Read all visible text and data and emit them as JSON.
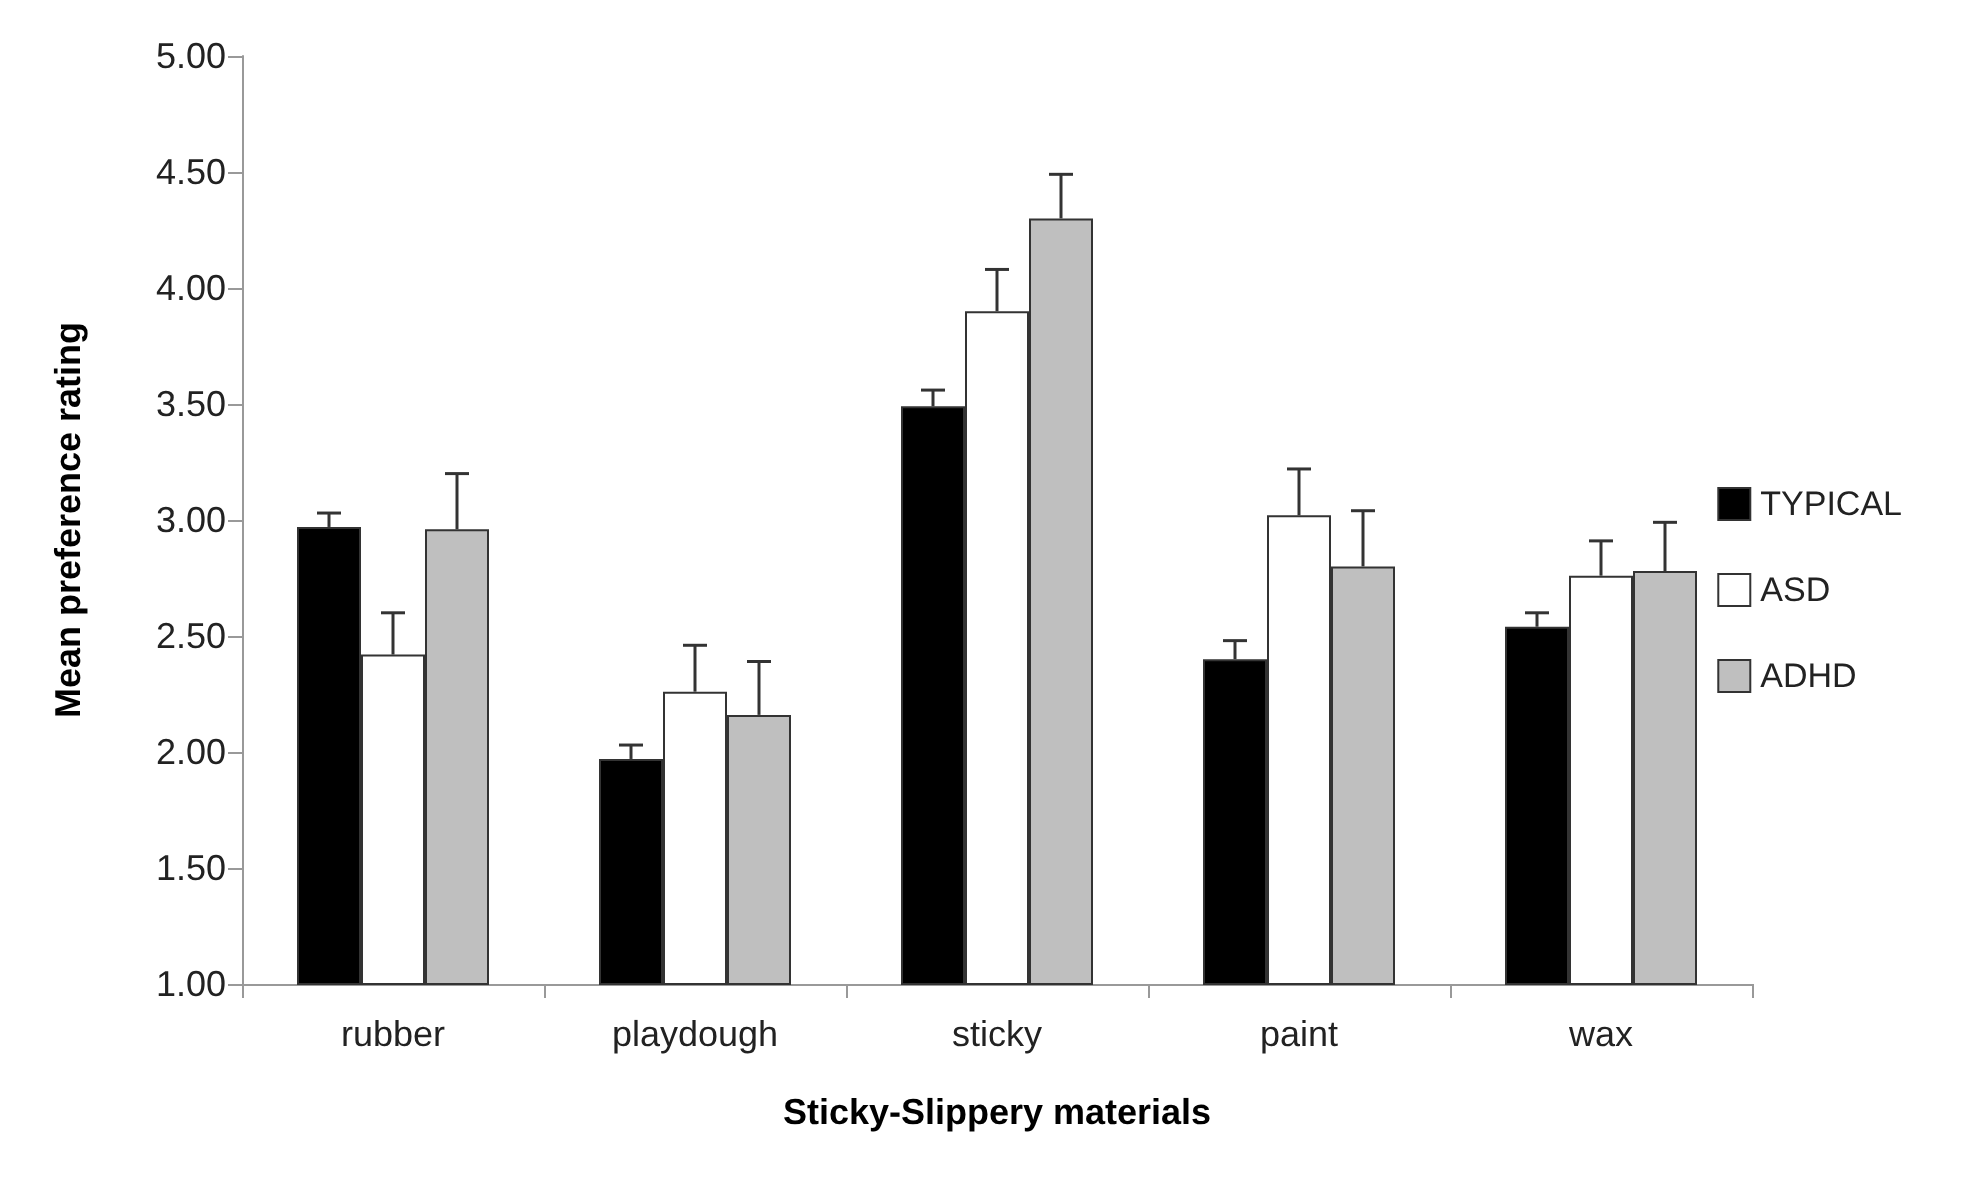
{
  "chart_data": {
    "type": "bar",
    "xlabel": "Sticky-Slippery materials",
    "ylabel": "Mean preference rating",
    "categories": [
      "rubber",
      "playdough",
      "sticky",
      "paint",
      "wax"
    ],
    "series": [
      {
        "name": "TYPICAL",
        "color": "#000000",
        "values": [
          2.97,
          1.97,
          3.49,
          2.4,
          2.54
        ],
        "errors": [
          [
            2.97,
            3.03
          ],
          [
            1.97,
            2.03
          ],
          [
            3.49,
            3.56
          ],
          [
            2.4,
            2.48
          ],
          [
            2.54,
            2.6
          ]
        ]
      },
      {
        "name": "ASD",
        "color": "#ffffff",
        "values": [
          2.42,
          2.26,
          3.9,
          3.02,
          2.76
        ],
        "errors": [
          [
            2.42,
            2.6
          ],
          [
            2.26,
            2.46
          ],
          [
            3.9,
            4.08
          ],
          [
            3.02,
            3.22
          ],
          [
            2.76,
            2.91
          ]
        ]
      },
      {
        "name": "ADHD",
        "color": "#bfbfbf",
        "values": [
          2.96,
          2.16,
          4.3,
          2.8,
          2.78
        ],
        "errors": [
          [
            2.96,
            3.2
          ],
          [
            2.16,
            2.39
          ],
          [
            4.3,
            4.49
          ],
          [
            2.8,
            3.04
          ],
          [
            2.78,
            2.99
          ]
        ]
      }
    ],
    "ylim": [
      1,
      5
    ],
    "yticks": [
      {
        "value": 1,
        "label": "1.00"
      },
      {
        "value": 1.5,
        "label": "1.50"
      },
      {
        "value": 2,
        "label": "2.00"
      },
      {
        "value": 2.5,
        "label": "2.50"
      },
      {
        "value": 3,
        "label": "3.00"
      },
      {
        "value": 3.5,
        "label": "3.50"
      },
      {
        "value": 4,
        "label": "4.00"
      },
      {
        "value": 4.5,
        "label": "4.50"
      },
      {
        "value": 5,
        "label": "5.00"
      }
    ],
    "grid": false,
    "legend": "right"
  }
}
